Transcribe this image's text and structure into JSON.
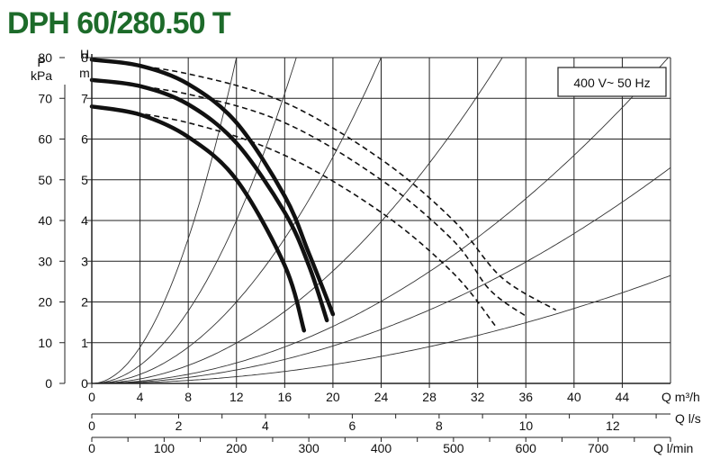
{
  "title": "DPH 60/280.50 T",
  "colors": {
    "title": "#1d6b2a",
    "axis": "#222222",
    "curve": "#111111"
  },
  "chart_data": {
    "type": "line",
    "title": "DPH 60/280.50 T",
    "annotation": "400 V~ 50 Hz",
    "grid": true,
    "x": {
      "label": "Q m³/h",
      "range": [
        0,
        48
      ],
      "ticks": [
        0,
        4,
        8,
        12,
        16,
        20,
        24,
        28,
        32,
        36,
        40,
        44
      ]
    },
    "x2": {
      "label": "Q l/s",
      "range": [
        0,
        13.33
      ],
      "ticks": [
        0,
        2,
        4,
        6,
        8,
        10,
        12
      ]
    },
    "x3": {
      "label": "Q l/min",
      "range": [
        0,
        800
      ],
      "ticks": [
        0,
        100,
        200,
        300,
        400,
        500,
        600,
        700
      ]
    },
    "y": {
      "label_line1": "H",
      "label_line2": "m",
      "range": [
        0,
        8
      ],
      "ticks": [
        0,
        1,
        2,
        3,
        4,
        5,
        6,
        7,
        8
      ]
    },
    "y2": {
      "label_line1": "P",
      "label_line2": "kPa",
      "ticks": [
        0,
        10,
        20,
        30,
        40,
        50,
        60,
        70,
        80
      ]
    },
    "series": [
      {
        "style": "solid",
        "points": [
          [
            0,
            7.95
          ],
          [
            4,
            7.8
          ],
          [
            8,
            7.35
          ],
          [
            12,
            6.4
          ],
          [
            16,
            4.6
          ],
          [
            18,
            3.2
          ],
          [
            20,
            1.7
          ]
        ]
      },
      {
        "style": "solid",
        "points": [
          [
            0,
            7.45
          ],
          [
            4,
            7.3
          ],
          [
            8,
            6.85
          ],
          [
            12,
            5.9
          ],
          [
            16,
            4.2
          ],
          [
            18,
            2.9
          ],
          [
            19.5,
            1.55
          ]
        ]
      },
      {
        "style": "solid",
        "points": [
          [
            0,
            6.8
          ],
          [
            4,
            6.6
          ],
          [
            8,
            6.05
          ],
          [
            12,
            5.0
          ],
          [
            16,
            2.9
          ],
          [
            17.6,
            1.3
          ]
        ]
      },
      {
        "style": "dashed",
        "points": [
          [
            0,
            7.95
          ],
          [
            8,
            7.6
          ],
          [
            16,
            6.9
          ],
          [
            24,
            5.5
          ],
          [
            30,
            4.0
          ],
          [
            34,
            2.6
          ],
          [
            38.5,
            1.8
          ]
        ]
      },
      {
        "style": "dashed",
        "points": [
          [
            0,
            7.45
          ],
          [
            8,
            7.1
          ],
          [
            16,
            6.4
          ],
          [
            24,
            5.0
          ],
          [
            30,
            3.5
          ],
          [
            33,
            2.3
          ],
          [
            36,
            1.65
          ]
        ]
      },
      {
        "style": "dashed",
        "points": [
          [
            0,
            6.8
          ],
          [
            8,
            6.4
          ],
          [
            16,
            5.6
          ],
          [
            24,
            4.2
          ],
          [
            30,
            2.7
          ],
          [
            33.5,
            1.4
          ]
        ]
      }
    ],
    "system_curves_k": [
      0.0556,
      0.0278,
      0.0139,
      0.0069,
      0.0035,
      0.0023,
      0.00115
    ]
  }
}
